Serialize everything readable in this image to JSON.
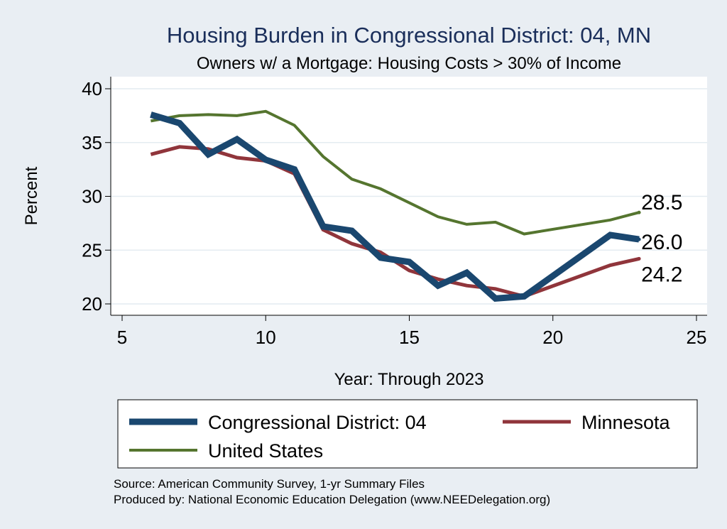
{
  "colors": {
    "background": "#e9eef3",
    "plot_background": "#ffffff",
    "title": "#1a2e5a",
    "grid": "#e4ecf1",
    "district": "#1a476f",
    "minnesota": "#90353b",
    "united_states": "#55752f"
  },
  "chart_data": {
    "type": "line",
    "title": "Housing Burden in Congressional District:  04, MN",
    "subtitle": "Owners w/ a Mortgage: Housing Costs > 30% of Income",
    "xlabel": "Year: Through 2023",
    "ylabel": "Percent",
    "xlim": [
      5,
      25
    ],
    "ylim": [
      20,
      40
    ],
    "xticks": [
      5,
      10,
      15,
      20,
      25
    ],
    "yticks": [
      20,
      25,
      30,
      35,
      40
    ],
    "grid": true,
    "legend_position": "bottom",
    "series": [
      {
        "name": "Congressional District:  04",
        "x": [
          6,
          7,
          8,
          9,
          10,
          11,
          12,
          13,
          14,
          15,
          16,
          17,
          18,
          19,
          22,
          23
        ],
        "values": [
          37.6,
          36.8,
          33.9,
          35.3,
          33.4,
          32.5,
          27.2,
          26.8,
          24.3,
          23.9,
          21.7,
          22.9,
          20.5,
          20.7,
          26.4,
          26.0
        ],
        "end_label": "26.0"
      },
      {
        "name": "Minnesota",
        "x": [
          6,
          7,
          8,
          9,
          10,
          11,
          12,
          13,
          14,
          15,
          16,
          17,
          18,
          19,
          22,
          23
        ],
        "values": [
          33.9,
          34.6,
          34.4,
          33.6,
          33.3,
          32.1,
          26.9,
          25.6,
          24.8,
          23.1,
          22.3,
          21.7,
          21.4,
          20.7,
          23.6,
          24.2
        ],
        "end_label": "24.2"
      },
      {
        "name": "United States",
        "x": [
          6,
          7,
          8,
          9,
          10,
          11,
          12,
          13,
          14,
          15,
          16,
          17,
          18,
          19,
          22,
          23
        ],
        "values": [
          37.0,
          37.5,
          37.6,
          37.5,
          37.9,
          36.6,
          33.7,
          31.6,
          30.7,
          29.4,
          28.1,
          27.4,
          27.6,
          26.5,
          27.8,
          28.5
        ],
        "end_label": "28.5"
      }
    ],
    "footnotes": [
      "Source: American Community Survey, 1-yr Summary Files",
      "Produced by: National Economic Education Delegation (www.NEEDelegation.org)"
    ]
  }
}
